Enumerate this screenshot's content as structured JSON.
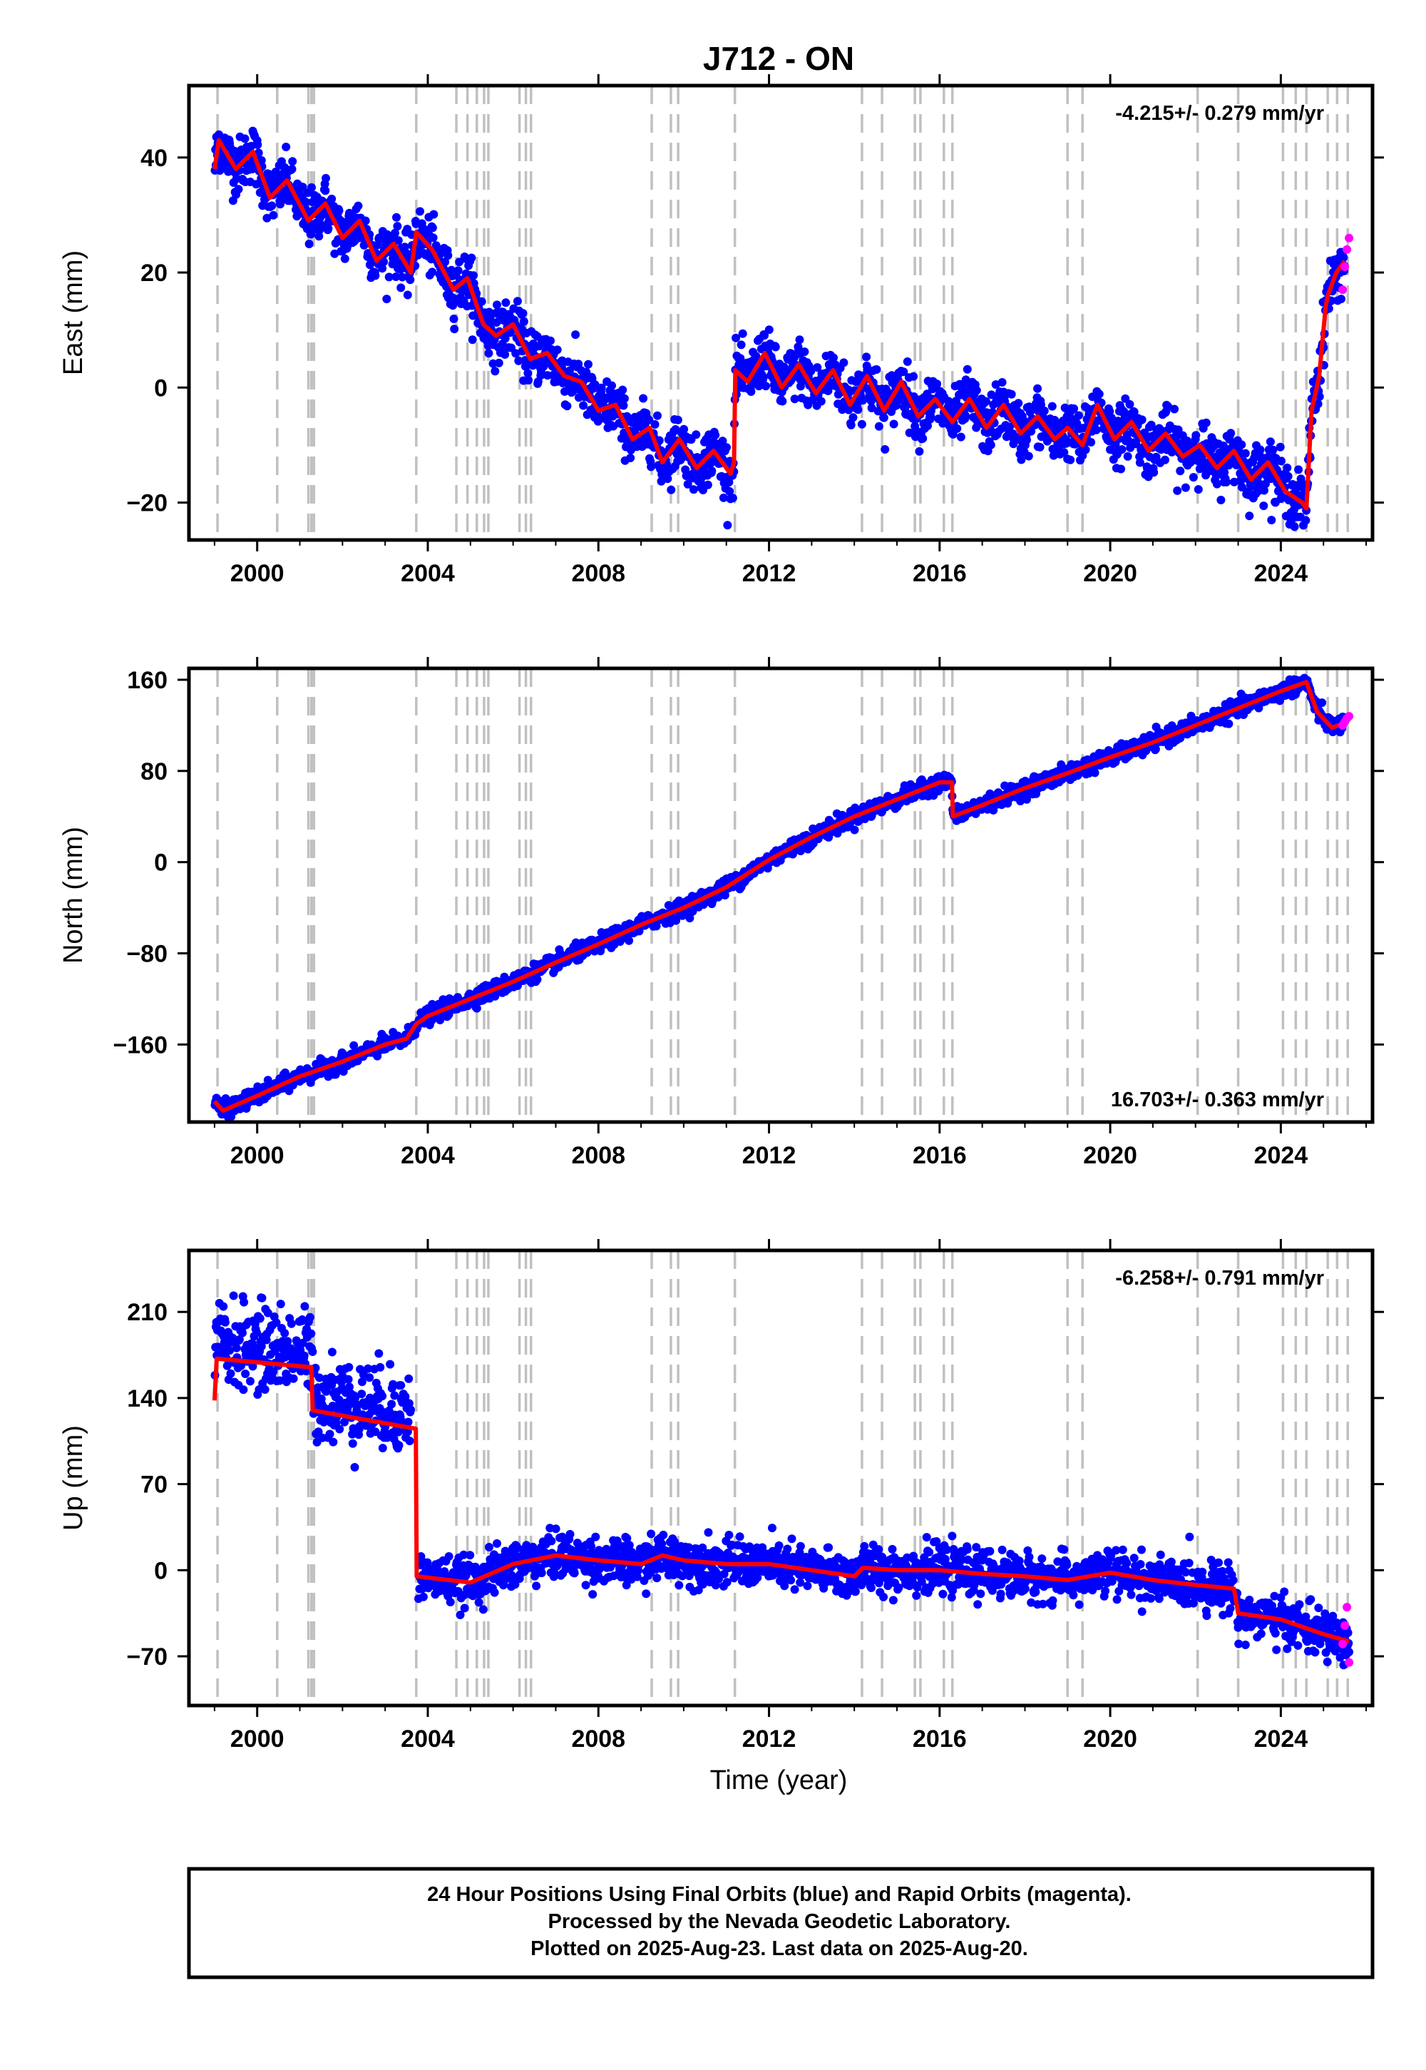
{
  "title": "J712 - ON",
  "colors": {
    "final_points": "#0000ff",
    "rapid_points": "#ff00ff",
    "model": "#ff0000",
    "event_lines": "#c0c0c0",
    "frame": "#000000"
  },
  "x_axis": {
    "label": "Time (year)",
    "range": [
      1998.4,
      2026.15
    ],
    "ticks": [
      2000,
      2004,
      2008,
      2012,
      2016,
      2020,
      2024
    ]
  },
  "event_lines": [
    1999.07,
    2000.47,
    2001.2,
    2001.27,
    2001.33,
    2003.73,
    2004.67,
    2004.93,
    2005.15,
    2005.32,
    2005.42,
    2006.15,
    2006.3,
    2006.42,
    2009.25,
    2009.7,
    2009.87,
    2011.2,
    2014.18,
    2014.65,
    2015.42,
    2015.55,
    2016.1,
    2016.3,
    2019.0,
    2019.35,
    2022.05,
    2023.0,
    2024.05,
    2024.35,
    2024.6,
    2025.1,
    2025.32,
    2025.57
  ],
  "footer": {
    "line1": "24 Hour Positions Using Final Orbits (blue) and Rapid Orbits (magenta).",
    "line2": "Processed by the Nevada Geodetic Laboratory.",
    "line3": "Plotted on 2025-Aug-23. Last data on 2025-Aug-20."
  },
  "chart_data": [
    {
      "type": "scatter",
      "component": "east",
      "ylabel": "East (mm)",
      "ylim": [
        -26.5,
        52.5
      ],
      "yticks": [
        40,
        20,
        0,
        -20
      ],
      "rate_label": "-4.215+/- 0.279 mm/yr",
      "rate_position": "top-right",
      "grid": false,
      "noise_mm": 2.4,
      "model": {
        "x": [
          1999.0,
          1999.1,
          1999.5,
          1999.9,
          2000.3,
          2000.7,
          2001.2,
          2001.6,
          2002.0,
          2002.4,
          2002.8,
          2003.2,
          2003.6,
          2003.73,
          2004.1,
          2004.6,
          2004.93,
          2005.3,
          2005.6,
          2006.0,
          2006.4,
          2006.8,
          2007.2,
          2007.6,
          2008.0,
          2008.4,
          2008.8,
          2009.2,
          2009.5,
          2009.9,
          2010.3,
          2010.7,
          2011.1,
          2011.18,
          2011.21,
          2011.5,
          2011.9,
          2012.3,
          2012.7,
          2013.1,
          2013.5,
          2013.9,
          2014.3,
          2014.7,
          2015.1,
          2015.5,
          2015.9,
          2016.3,
          2016.7,
          2017.1,
          2017.5,
          2017.9,
          2018.3,
          2018.7,
          2019.0,
          2019.35,
          2019.7,
          2020.1,
          2020.5,
          2020.9,
          2021.3,
          2021.7,
          2022.1,
          2022.5,
          2022.9,
          2023.3,
          2023.7,
          2024.1,
          2024.5,
          2024.6,
          2024.72,
          2024.9,
          2025.05,
          2025.1,
          2025.3,
          2025.5
        ],
        "y": [
          38,
          43,
          38,
          41,
          33,
          36,
          29,
          32,
          26,
          29,
          22,
          25,
          20,
          27,
          24,
          17,
          19,
          11,
          9,
          11,
          5,
          6,
          2,
          1,
          -4,
          -3,
          -9,
          -7,
          -13,
          -9,
          -14,
          -11,
          -15,
          -13,
          3,
          1,
          6,
          0,
          4,
          -1,
          3,
          -3,
          2,
          -4,
          1,
          -5,
          -2,
          -6,
          -2,
          -7,
          -3,
          -8,
          -5,
          -9,
          -7,
          -10,
          -3,
          -9,
          -6,
          -11,
          -8,
          -12,
          -10,
          -14,
          -11,
          -16,
          -13,
          -18,
          -20,
          -21,
          -4,
          2,
          14,
          16,
          20,
          22
        ]
      },
      "rapid": {
        "x": [
          2025.45,
          2025.5,
          2025.55,
          2025.6
        ],
        "y": [
          17,
          21,
          24,
          26
        ]
      }
    },
    {
      "type": "scatter",
      "component": "north",
      "ylabel": "North (mm)",
      "ylim": [
        -228,
        170
      ],
      "yticks": [
        160,
        80,
        0,
        -80,
        -160
      ],
      "rate_label": "16.703+/- 0.363 mm/yr",
      "rate_position": "bottom-right",
      "grid": false,
      "noise_mm": 3.5,
      "model": {
        "x": [
          1999.0,
          1999.2,
          2000.0,
          2001.0,
          2002.0,
          2003.0,
          2003.5,
          2003.73,
          2004.0,
          2005.0,
          2006.0,
          2007.0,
          2008.0,
          2009.0,
          2010.0,
          2011.0,
          2012.0,
          2013.0,
          2014.0,
          2015.0,
          2016.0,
          2016.29,
          2016.31,
          2017.0,
          2018.0,
          2019.0,
          2020.0,
          2021.0,
          2022.0,
          2023.0,
          2024.0,
          2024.6,
          2024.85,
          2025.2,
          2025.5
        ],
        "y": [
          -210,
          -218,
          -205,
          -188,
          -175,
          -160,
          -155,
          -142,
          -135,
          -120,
          -105,
          -88,
          -72,
          -55,
          -40,
          -22,
          2,
          22,
          40,
          55,
          70,
          70,
          40,
          50,
          65,
          78,
          92,
          105,
          120,
          135,
          150,
          158,
          132,
          118,
          122
        ]
      },
      "rapid": {
        "x": [
          2025.45,
          2025.5,
          2025.55,
          2025.6
        ],
        "y": [
          120,
          123,
          126,
          128
        ]
      }
    },
    {
      "type": "scatter",
      "component": "up",
      "ylabel": "Up (mm)",
      "ylim": [
        -110,
        260
      ],
      "yticks": [
        210,
        140,
        70,
        0,
        -70
      ],
      "rate_label": "-6.258+/- 0.791 mm/yr",
      "rate_position": "top-right",
      "grid": false,
      "noise_mm": 9,
      "model": {
        "x": [
          1999.0,
          1999.05,
          2001.27,
          2001.3,
          2003.72,
          2003.74,
          2005.0,
          2006.0,
          2007.0,
          2008.0,
          2009.0,
          2009.5,
          2010.0,
          2011.0,
          2012.0,
          2013.0,
          2014.0,
          2014.2,
          2015.0,
          2016.0,
          2017.0,
          2018.0,
          2019.0,
          2020.0,
          2021.0,
          2022.0,
          2022.9,
          2023.0,
          2024.0,
          2025.0,
          2025.6
        ],
        "y": [
          138,
          172,
          165,
          130,
          115,
          -5,
          -10,
          5,
          12,
          8,
          5,
          12,
          8,
          5,
          5,
          0,
          -5,
          2,
          0,
          0,
          -3,
          -5,
          -8,
          -2,
          -8,
          -12,
          -15,
          -35,
          -40,
          -52,
          -58
        ]
      },
      "rapid": {
        "x": [
          2025.45,
          2025.5,
          2025.55,
          2025.6
        ],
        "y": [
          -60,
          -45,
          -30,
          -75
        ]
      }
    }
  ]
}
